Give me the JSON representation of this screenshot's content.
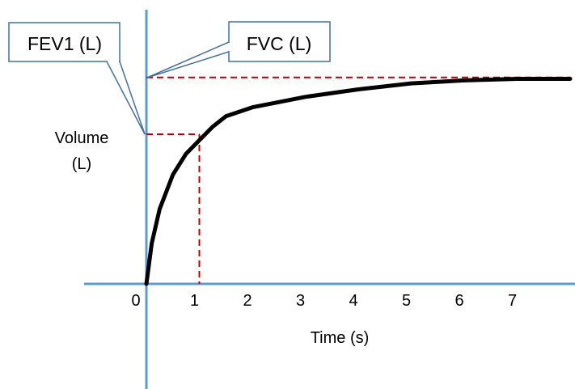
{
  "chart_data": {
    "type": "line",
    "title": "",
    "xlabel": "Time (s)",
    "ylabel": [
      "Volume",
      "(L)"
    ],
    "x_ticks": [
      "0",
      "1",
      "2",
      "3",
      "4",
      "5",
      "6",
      "7"
    ],
    "callouts": {
      "fev1": "FEV1 (L)",
      "fvc": "FVC (L)"
    },
    "series": [
      {
        "points": [
          [
            0,
            0
          ],
          [
            0.1,
            0.27
          ],
          [
            0.25,
            0.5
          ],
          [
            0.5,
            0.73
          ],
          [
            0.75,
            0.87
          ],
          [
            1.0,
            0.96
          ],
          [
            1.25,
            1.05
          ],
          [
            1.5,
            1.12
          ],
          [
            2.0,
            1.18
          ],
          [
            3.0,
            1.25
          ],
          [
            4.0,
            1.3
          ],
          [
            5.0,
            1.34
          ],
          [
            6.0,
            1.36
          ],
          [
            7.0,
            1.37
          ],
          [
            8.0,
            1.37
          ]
        ]
      }
    ],
    "reference_lines": {
      "fev1_time": 1.0,
      "fev1_volume": 1.0,
      "fvc_volume": 1.38
    },
    "colors": {
      "axis": "#5b9bd5",
      "curve": "#000000",
      "reference": "#c00000",
      "callout_border": "#41719c"
    }
  }
}
